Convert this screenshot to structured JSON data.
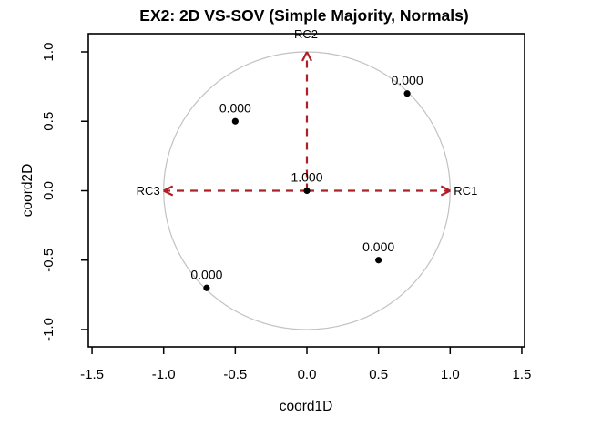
{
  "figure": {
    "title": "EX2: 2D VS-SOV (Simple Majority, Normals)",
    "xlabel": "coord1D",
    "ylabel": "coord2D"
  },
  "chart_data": {
    "type": "scatter",
    "title": "EX2: 2D VS-SOV (Simple Majority, Normals)",
    "xlabel": "coord1D",
    "ylabel": "coord2D",
    "xlim": [
      -1.5,
      1.5
    ],
    "ylim": [
      -1.0,
      1.0
    ],
    "grid": false,
    "legend": false,
    "x_ticks": [
      -1.5,
      -1.0,
      -0.5,
      0.0,
      0.5,
      1.0,
      1.5
    ],
    "x_tick_labels": [
      "-1.5",
      "-1.0",
      "-0.5",
      "0.0",
      "0.5",
      "1.0",
      "1.5"
    ],
    "y_ticks": [
      1.0,
      0.5,
      0.0,
      -0.5,
      -1.0
    ],
    "y_tick_labels": [
      "1.0",
      "0.5",
      "0.0",
      "-0.5",
      "-1.0"
    ],
    "unit_circle": {
      "radius": 1.0
    },
    "points": [
      {
        "x": 0.0,
        "y": 0.0,
        "label": "1.000"
      },
      {
        "x": -0.5,
        "y": 0.5,
        "label": "0.000"
      },
      {
        "x": 0.7,
        "y": 0.7,
        "label": "0.000"
      },
      {
        "x": 0.5,
        "y": -0.5,
        "label": "0.000"
      },
      {
        "x": -0.7,
        "y": -0.7,
        "label": "0.000"
      }
    ],
    "arrows": [
      {
        "label": "RC1",
        "to_x": 1.0,
        "to_y": 0.0,
        "label_side": "right"
      },
      {
        "label": "RC2",
        "to_x": 0.0,
        "to_y": 1.0,
        "label_side": "top"
      },
      {
        "label": "RC3",
        "to_x": -1.0,
        "to_y": 0.0,
        "label_side": "left"
      }
    ],
    "colors": {
      "arrow": "#AF2025",
      "point": "#000000",
      "circle": "#C2C2C2",
      "text": "#000000",
      "background": "#FFFFFF"
    }
  }
}
